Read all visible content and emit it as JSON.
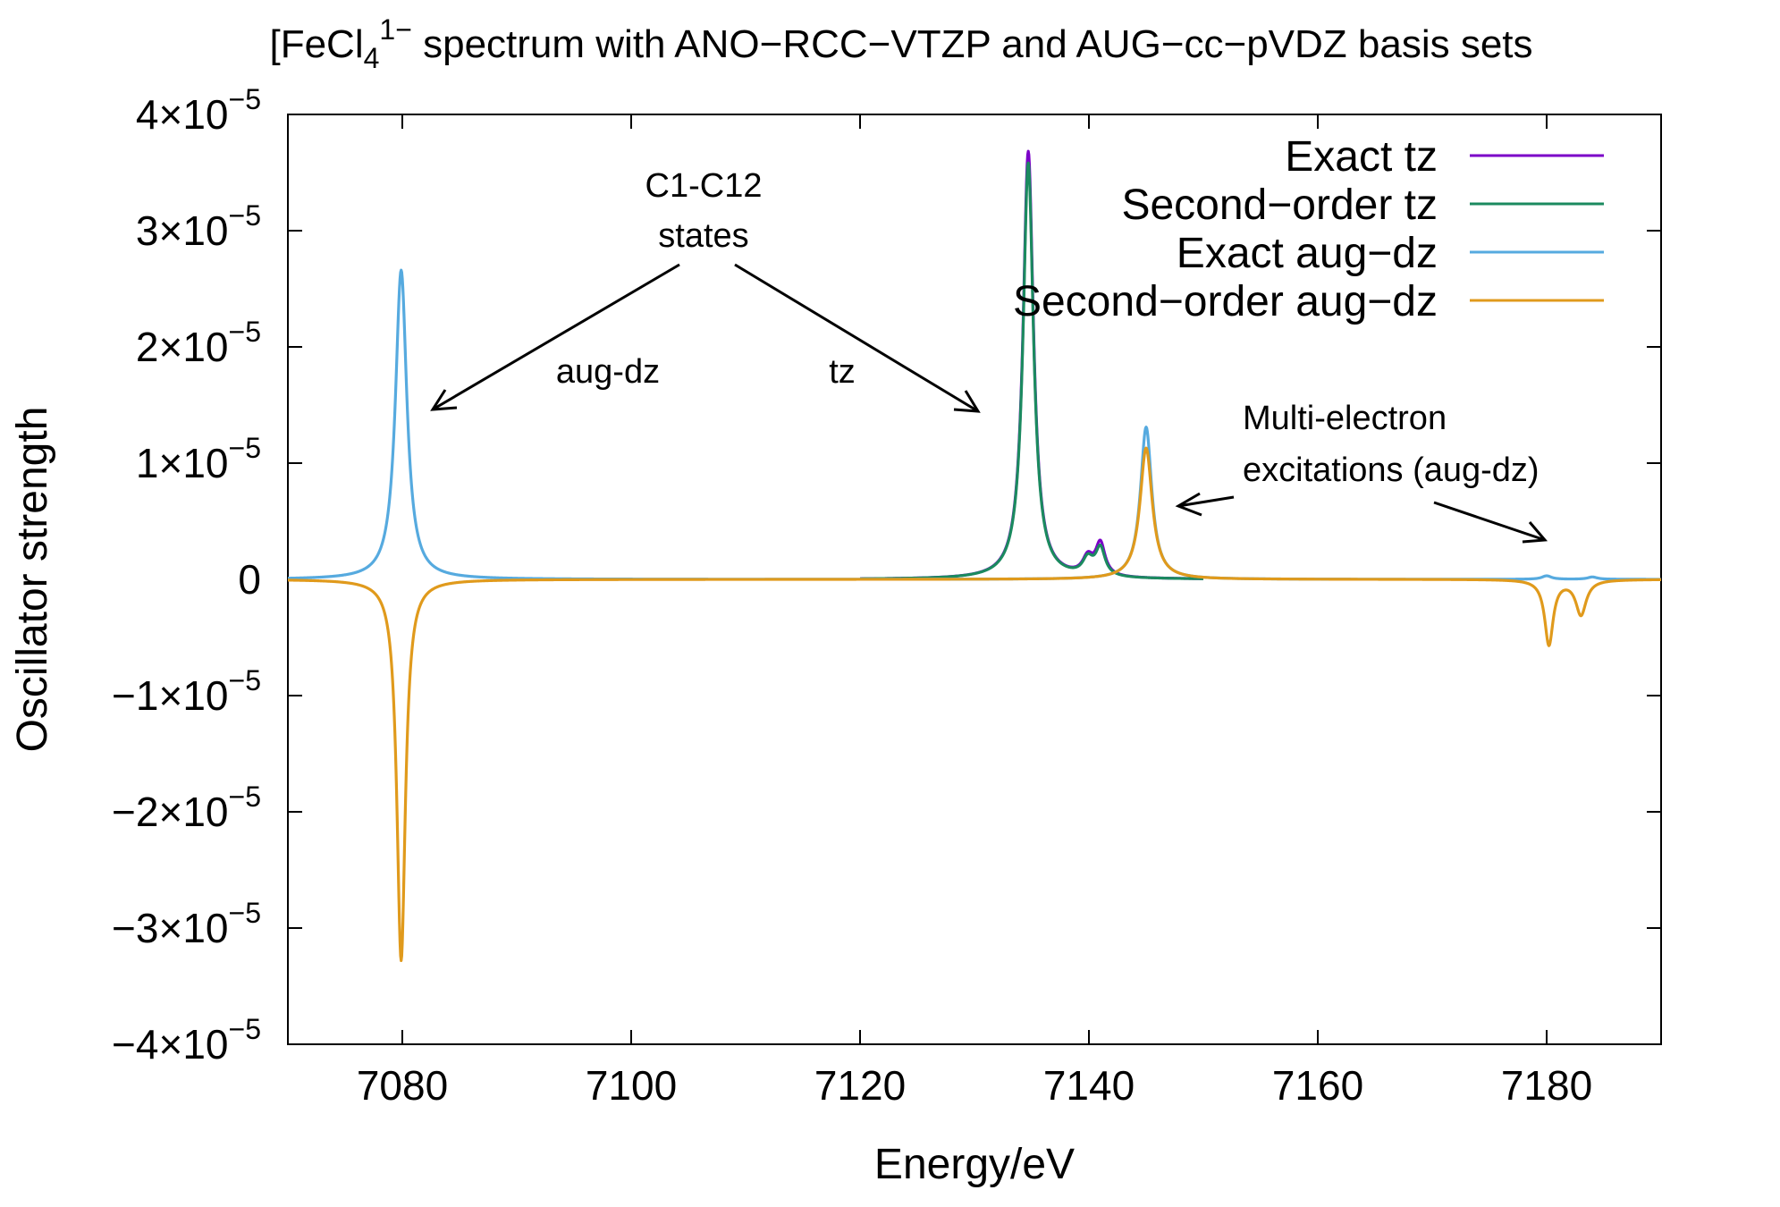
{
  "chart_data": {
    "type": "line",
    "title": {
      "prefix": "[FeCl",
      "sub": "4",
      "sup": "1−",
      "suffix": " spectrum with ANO−RCC−VTZP and AUG−cc−pVDZ basis sets"
    },
    "xlabel": "Energy/eV",
    "ylabel": "Oscillator strength",
    "xlim": [
      7070,
      7190
    ],
    "ylim": [
      -4e-05,
      4e-05
    ],
    "xticks": [
      {
        "value": 7080,
        "label": "7080"
      },
      {
        "value": 7100,
        "label": "7100"
      },
      {
        "value": 7120,
        "label": "7120"
      },
      {
        "value": 7140,
        "label": "7140"
      },
      {
        "value": 7160,
        "label": "7160"
      },
      {
        "value": 7180,
        "label": "7180"
      }
    ],
    "yticks": [
      {
        "value": 4e-05,
        "mant": "4×10",
        "exp": "−5"
      },
      {
        "value": 3e-05,
        "mant": "3×10",
        "exp": "−5"
      },
      {
        "value": 2e-05,
        "mant": "2×10",
        "exp": "−5"
      },
      {
        "value": 1e-05,
        "mant": "1×10",
        "exp": "−5"
      },
      {
        "value": 0,
        "mant": "0",
        "exp": ""
      },
      {
        "value": -1e-05,
        "mant": "−1×10",
        "exp": "−5"
      },
      {
        "value": -2e-05,
        "mant": "−2×10",
        "exp": "−5"
      },
      {
        "value": -3e-05,
        "mant": "−3×10",
        "exp": "−5"
      },
      {
        "value": -4e-05,
        "mant": "−4×10",
        "exp": "−5"
      }
    ],
    "legend_position": "top-right",
    "series": [
      {
        "name": "Exact tz",
        "color": "#7b00c8",
        "range": [
          7120,
          7150
        ],
        "peaks": [
          {
            "x0": 7134.7,
            "amp": 3.68e-05,
            "w": 0.55
          },
          {
            "x0": 7139.9,
            "amp": 1.5e-06,
            "w": 0.55
          },
          {
            "x0": 7141.0,
            "amp": 2.8e-06,
            "w": 0.5
          }
        ]
      },
      {
        "name": "Second−order tz",
        "color": "#1b8a5f",
        "range": [
          7120,
          7150
        ],
        "peaks": [
          {
            "x0": 7134.7,
            "amp": 3.58e-05,
            "w": 0.55
          },
          {
            "x0": 7139.9,
            "amp": 1.4e-06,
            "w": 0.55
          },
          {
            "x0": 7141.0,
            "amp": 2.4e-06,
            "w": 0.5
          }
        ]
      },
      {
        "name": "Exact aug−dz",
        "color": "#56aadf",
        "range": [
          7070,
          7190
        ],
        "peaks": [
          {
            "x0": 7079.9,
            "amp": 2.66e-05,
            "w": 0.6
          },
          {
            "x0": 7145.0,
            "amp": 1.31e-05,
            "w": 0.6
          },
          {
            "x0": 7180.0,
            "amp": 3e-07,
            "w": 0.5
          },
          {
            "x0": 7184.0,
            "amp": 2e-07,
            "w": 0.5
          }
        ]
      },
      {
        "name": "Second−order aug−dz",
        "color": "#e09a1c",
        "range": [
          7070,
          7190
        ],
        "peaks": [
          {
            "x0": 7079.9,
            "amp": -3.28e-05,
            "w": 0.45
          },
          {
            "x0": 7145.0,
            "amp": 1.13e-05,
            "w": 0.65
          },
          {
            "x0": 7180.2,
            "amp": -5.6e-06,
            "w": 0.45
          },
          {
            "x0": 7183.0,
            "amp": -3e-06,
            "w": 0.55
          }
        ]
      }
    ],
    "annotations": [
      {
        "lines": [
          "C1-C12",
          "states"
        ]
      },
      {
        "lines": [
          "aug-dz"
        ]
      },
      {
        "lines": [
          "tz"
        ]
      },
      {
        "lines": [
          "Multi-electron",
          "excitations (aug-dz)"
        ]
      }
    ]
  }
}
